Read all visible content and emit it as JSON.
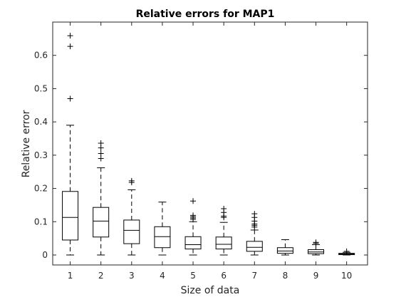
{
  "chart_data": {
    "type": "boxplot",
    "title": "Relative errors for MAP1",
    "xlabel": "Size of data",
    "ylabel": "Relative error",
    "categories": [
      "1",
      "2",
      "3",
      "4",
      "5",
      "6",
      "7",
      "8",
      "9",
      "10"
    ],
    "ylim": [
      -0.03,
      0.7
    ],
    "yticks": [
      0,
      0.1,
      0.2,
      0.3,
      0.4,
      0.5,
      0.6
    ],
    "ytick_labels": [
      "0",
      "0.1",
      "0.2",
      "0.3",
      "0.4",
      "0.5",
      "0.6"
    ],
    "grid": false,
    "boxes": [
      {
        "category": "1",
        "whisker_low": 0.0,
        "q1": 0.045,
        "median": 0.113,
        "q3": 0.191,
        "whisker_high": 0.39,
        "outliers": [
          0.47,
          0.627,
          0.659
        ]
      },
      {
        "category": "2",
        "whisker_low": 0.0,
        "q1": 0.054,
        "median": 0.102,
        "q3": 0.143,
        "whisker_high": 0.262,
        "outliers": [
          0.29,
          0.305,
          0.322,
          0.336
        ]
      },
      {
        "category": "3",
        "whisker_low": 0.0,
        "q1": 0.034,
        "median": 0.074,
        "q3": 0.105,
        "whisker_high": 0.196,
        "outliers": [
          0.218,
          0.223
        ]
      },
      {
        "category": "4",
        "whisker_low": 0.0,
        "q1": 0.022,
        "median": 0.055,
        "q3": 0.085,
        "whisker_high": 0.159,
        "outliers": []
      },
      {
        "category": "5",
        "whisker_low": 0.0,
        "q1": 0.018,
        "median": 0.031,
        "q3": 0.055,
        "whisker_high": 0.1,
        "outliers": [
          0.107,
          0.111,
          0.115,
          0.119,
          0.162
        ]
      },
      {
        "category": "6",
        "whisker_low": 0.0,
        "q1": 0.018,
        "median": 0.032,
        "q3": 0.054,
        "whisker_high": 0.098,
        "outliers": [
          0.113,
          0.117,
          0.128,
          0.139
        ]
      },
      {
        "category": "7",
        "whisker_low": 0.0,
        "q1": 0.011,
        "median": 0.023,
        "q3": 0.041,
        "whisker_high": 0.075,
        "outliers": [
          0.084,
          0.089,
          0.093,
          0.102,
          0.113,
          0.124
        ]
      },
      {
        "category": "8",
        "whisker_low": 0.0,
        "q1": 0.005,
        "median": 0.012,
        "q3": 0.022,
        "whisker_high": 0.046,
        "outliers": []
      },
      {
        "category": "9",
        "whisker_low": 0.0,
        "q1": 0.004,
        "median": 0.009,
        "q3": 0.016,
        "whisker_high": 0.031,
        "outliers": [
          0.035,
          0.038
        ]
      },
      {
        "category": "10",
        "whisker_low": 0.0,
        "q1": 0.001,
        "median": 0.003,
        "q3": 0.005,
        "whisker_high": 0.008,
        "outliers": [
          0.011
        ]
      }
    ]
  }
}
